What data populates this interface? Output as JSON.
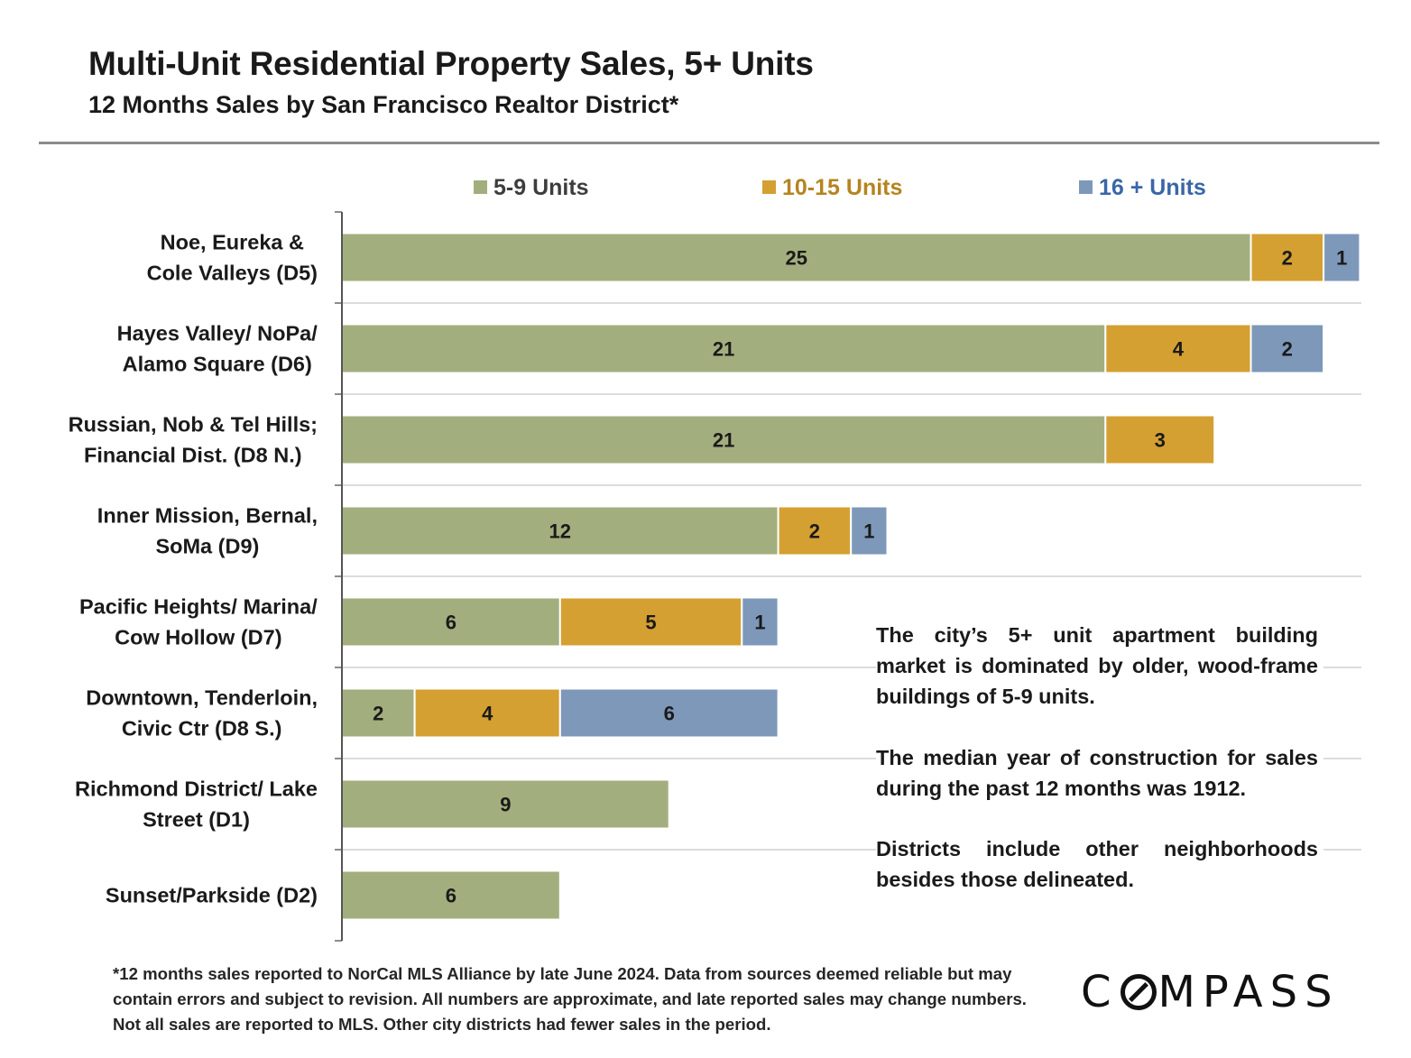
{
  "header": {
    "title": "Multi-Unit Residential Property Sales, 5+ Units",
    "subtitle": "12 Months Sales by San Francisco Realtor District*"
  },
  "chart_data": {
    "type": "bar",
    "orientation": "horizontal",
    "stacked": true,
    "title": "Multi-Unit Residential Property Sales, 5+ Units",
    "subtitle": "12 Months Sales by San Francisco Realtor District*",
    "xlim": [
      0,
      28
    ],
    "grid": "horizontal category separators",
    "legend_position": "top",
    "categories": [
      [
        "Noe, Eureka &",
        "Cole Valleys (D5)"
      ],
      [
        "Hayes Valley/ NoPa/",
        "Alamo Square (D6)"
      ],
      [
        "Russian, Nob & Tel Hills;",
        "Financial Dist. (D8 N.)"
      ],
      [
        "Inner Mission, Bernal,",
        "SoMa (D9)"
      ],
      [
        "Pacific Heights/ Marina/",
        "Cow Hollow (D7)"
      ],
      [
        "Downtown, Tenderloin,",
        "Civic Ctr (D8 S.)"
      ],
      [
        "Richmond District/ Lake",
        "Street (D1)"
      ],
      [
        "Sunset/Parkside (D2)"
      ]
    ],
    "series": [
      {
        "name": "5-9 Units",
        "color": "#a3ae7e",
        "label_color": "#3d3d3d",
        "values": [
          25,
          21,
          21,
          12,
          6,
          2,
          9,
          6
        ]
      },
      {
        "name": "10-15 Units",
        "color": "#d4a032",
        "label_color": "#b58420",
        "values": [
          2,
          4,
          3,
          2,
          5,
          4,
          null,
          null
        ]
      },
      {
        "name": "16 + Units",
        "color": "#7e98ba",
        "label_color": "#3a66a8",
        "values": [
          1,
          2,
          null,
          1,
          1,
          6,
          null,
          null
        ]
      }
    ]
  },
  "notes": [
    "The city’s 5+ unit apartment building market is dominated by older, wood-frame buildings of 5-9 units.",
    "The median year of construction for sales during the past 12 months was 1912.",
    "Districts include other neighborhoods besides those delineated."
  ],
  "footnote": "*12 months sales reported to NorCal MLS Alliance by late June 2024. Data from sources deemed reliable but may contain errors and subject to revision. All numbers are approximate, and late reported sales may change numbers. Not all sales are reported to MLS. Other city districts had fewer sales in the period.",
  "logo": {
    "before": "C",
    "after": "MPASS"
  }
}
